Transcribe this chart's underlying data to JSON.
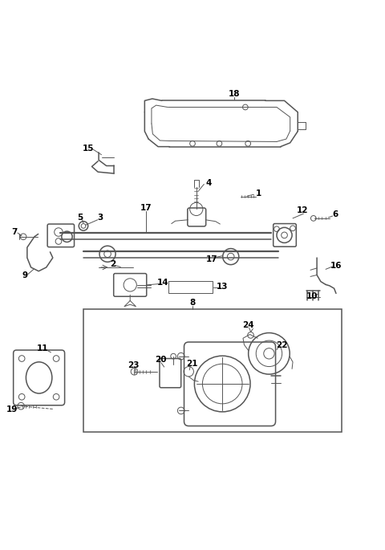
{
  "bg_color": "#ffffff",
  "line_color": "#555555",
  "text_color": "#000000",
  "fig_width": 4.8,
  "fig_height": 6.85,
  "dpi": 100
}
